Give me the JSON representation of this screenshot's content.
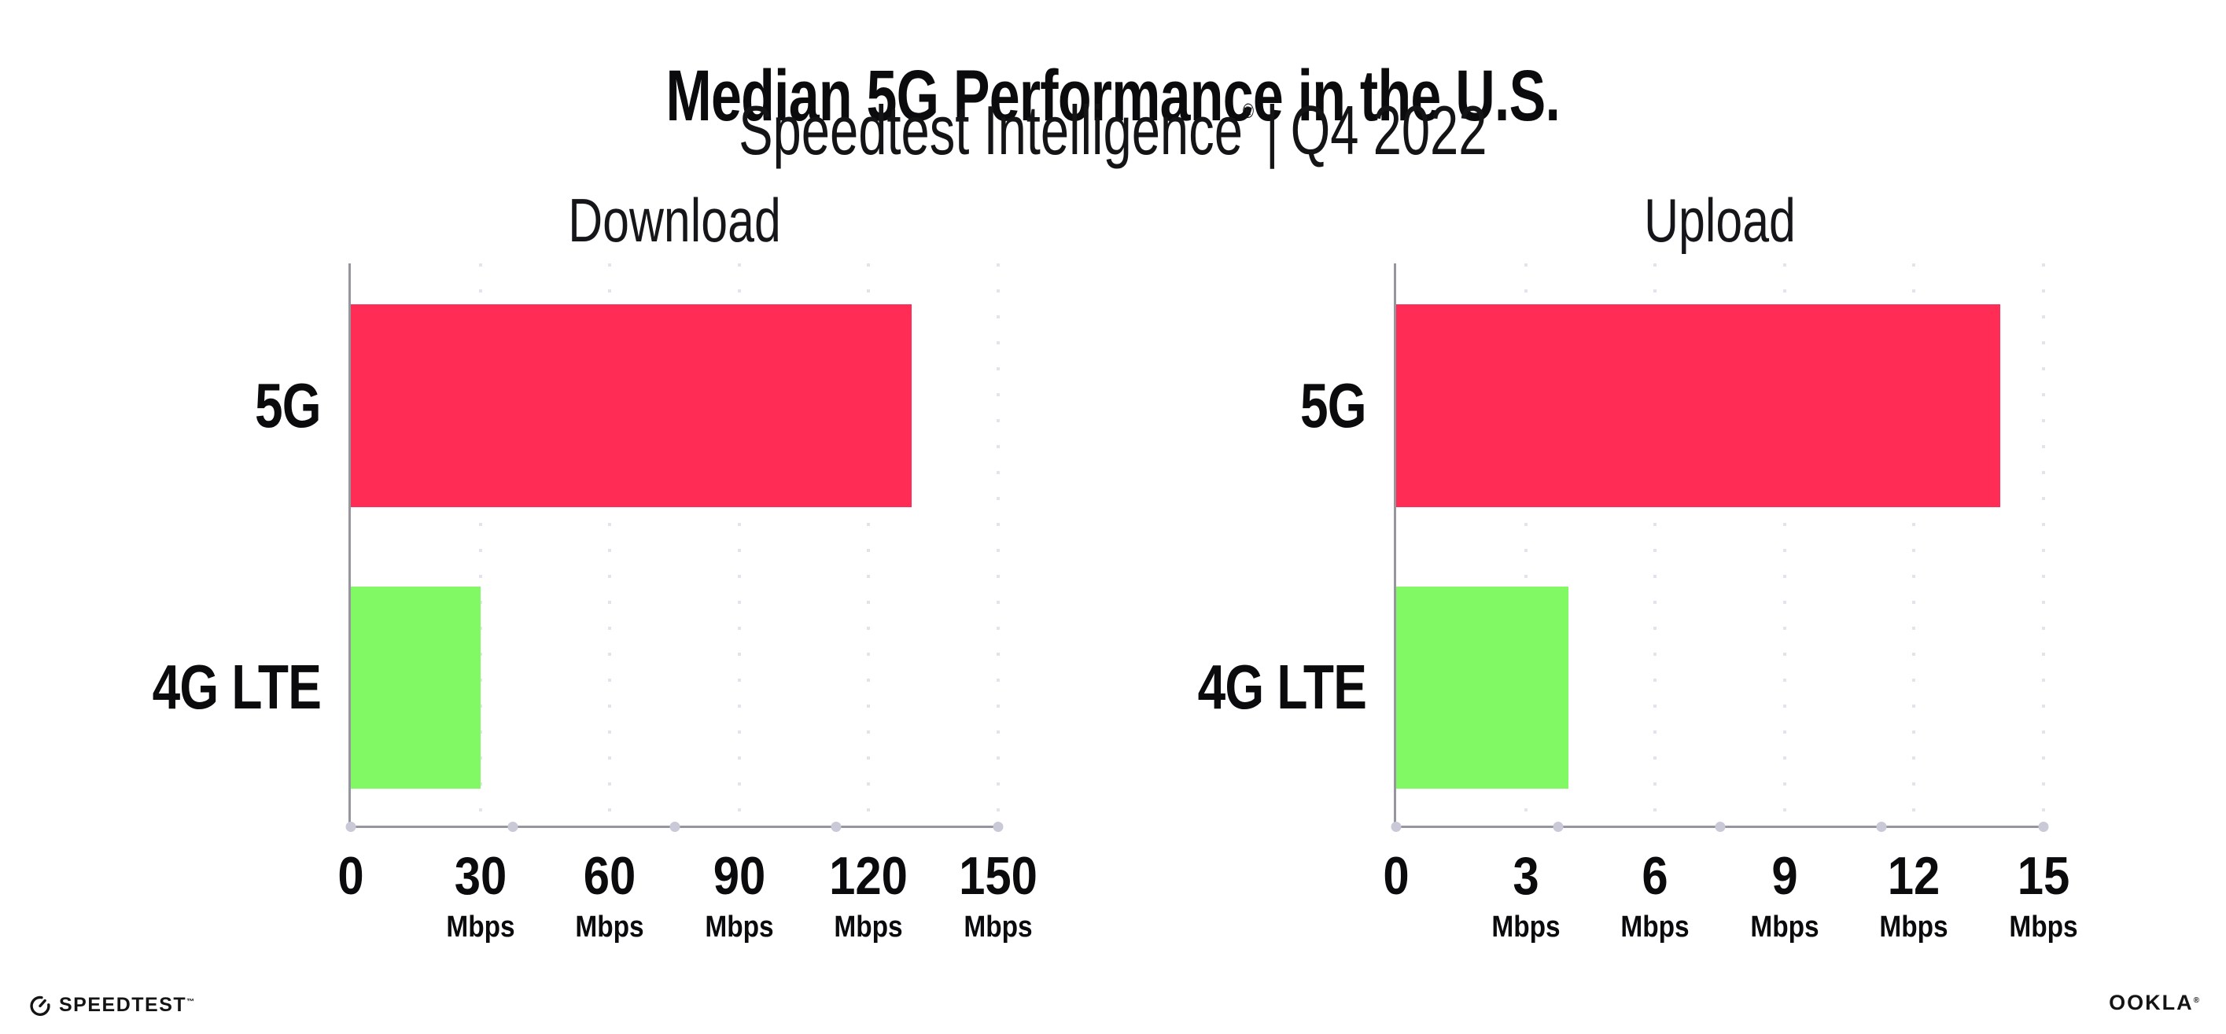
{
  "header": {
    "title": "Median 5G Performance in the U.S.",
    "subtitle_brand": "Speedtest Intelligence",
    "subtitle_reg": "®",
    "subtitle_separator": "|",
    "subtitle_period": "Q4 2022"
  },
  "chart_data": [
    {
      "type": "bar",
      "orientation": "horizontal",
      "title": "Download",
      "categories": [
        "5G",
        "4G LTE"
      ],
      "values": [
        130,
        30
      ],
      "unit": "Mbps",
      "xlim": [
        0,
        150
      ],
      "xticks": [
        0,
        30,
        60,
        90,
        120,
        150
      ],
      "bar_colors": [
        "#FF2D55",
        "#80F965"
      ],
      "grid": "dotted-vertical",
      "legend": "none"
    },
    {
      "type": "bar",
      "orientation": "horizontal",
      "title": "Upload",
      "categories": [
        "5G",
        "4G LTE"
      ],
      "values": [
        14,
        4
      ],
      "unit": "Mbps",
      "xlim": [
        0,
        15
      ],
      "xticks": [
        0,
        3,
        6,
        9,
        12,
        15
      ],
      "bar_colors": [
        "#FF2D55",
        "#80F965"
      ],
      "grid": "dotted-vertical",
      "legend": "none"
    }
  ],
  "colors": {
    "bar_5g": "#FF2D55",
    "bar_4g": "#80F965",
    "axis": "#96969E",
    "grid_dot": "#E3E3EC",
    "baseline_dot": "#C9C9D8",
    "text": "#0B0B0D"
  },
  "footer": {
    "speedtest_wordmark": "SPEEDTEST",
    "speedtest_trademark": "™",
    "ookla_wordmark": "OOKLA",
    "ookla_trademark": "®"
  }
}
